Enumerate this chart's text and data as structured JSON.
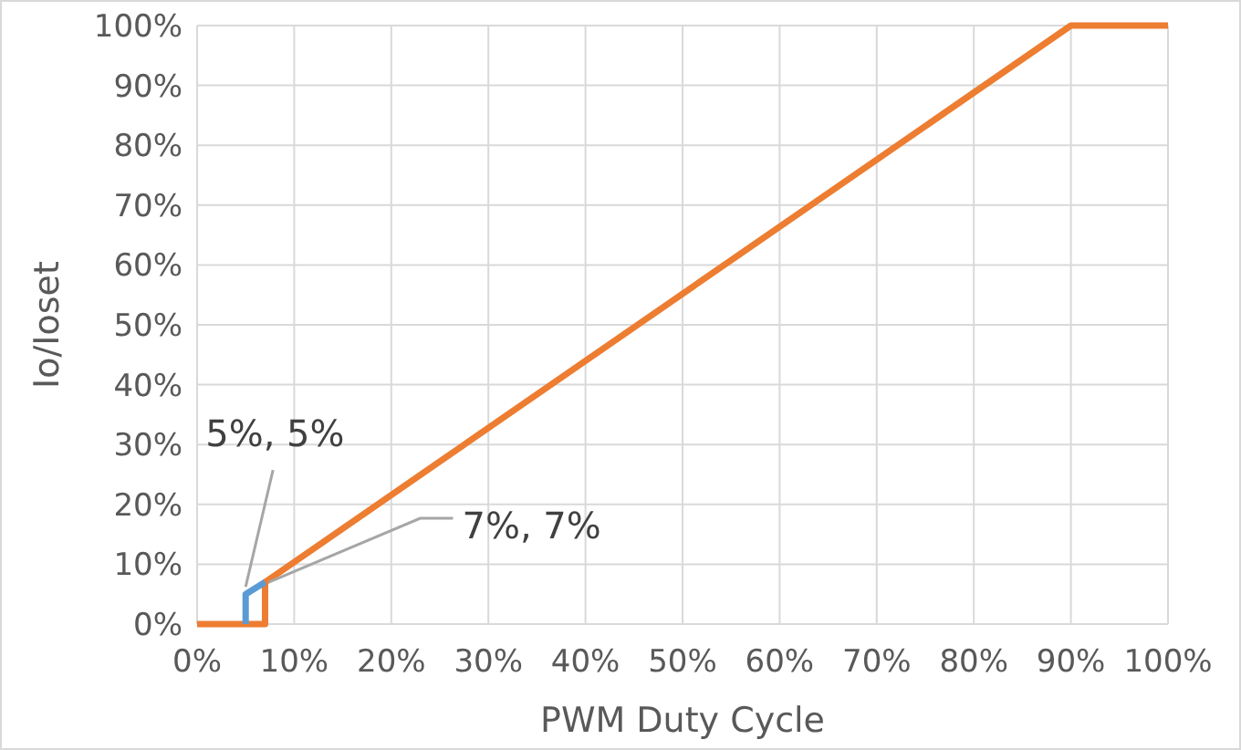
{
  "chart_data": {
    "type": "line",
    "xlabel": "PWM Duty Cycle",
    "ylabel": "Io/Ioset",
    "series": [
      {
        "color": "#ed7d31",
        "x": [
          0,
          7,
          7,
          90,
          100
        ],
        "values": [
          0,
          0,
          7,
          100,
          100
        ]
      },
      {
        "color": "#5b9bd5",
        "x": [
          5,
          5,
          7
        ],
        "values": [
          0,
          5,
          7
        ]
      }
    ],
    "xlim": [
      0,
      100
    ],
    "ylim": [
      0,
      100
    ],
    "xticks": [
      {
        "value": 0,
        "label": "0%"
      },
      {
        "value": 10,
        "label": "10%"
      },
      {
        "value": 20,
        "label": "20%"
      },
      {
        "value": 30,
        "label": "30%"
      },
      {
        "value": 40,
        "label": "40%"
      },
      {
        "value": 50,
        "label": "50%"
      },
      {
        "value": 60,
        "label": "60%"
      },
      {
        "value": 70,
        "label": "70%"
      },
      {
        "value": 80,
        "label": "80%"
      },
      {
        "value": 90,
        "label": "90%"
      },
      {
        "value": 100,
        "label": "100%"
      }
    ],
    "yticks": [
      {
        "value": 0,
        "label": "0%"
      },
      {
        "value": 10,
        "label": "10%"
      },
      {
        "value": 20,
        "label": "20%"
      },
      {
        "value": 30,
        "label": "30%"
      },
      {
        "value": 40,
        "label": "40%"
      },
      {
        "value": 50,
        "label": "50%"
      },
      {
        "value": 60,
        "label": "60%"
      },
      {
        "value": 70,
        "label": "70%"
      },
      {
        "value": 80,
        "label": "80%"
      },
      {
        "value": 90,
        "label": "90%"
      },
      {
        "value": 100,
        "label": "100%"
      }
    ],
    "grid": true,
    "marker": "none",
    "line_style": "solid",
    "annotations": [
      {
        "text": "5%, 5%",
        "x": 5,
        "y": 5
      },
      {
        "text": "7%, 7%",
        "x": 7,
        "y": 7
      }
    ]
  }
}
